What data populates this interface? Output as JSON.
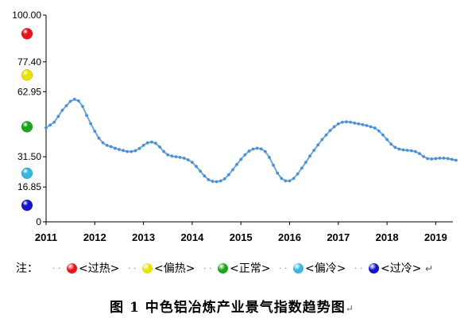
{
  "chart_data": {
    "type": "line",
    "title": "",
    "xlabel": "",
    "ylabel": "",
    "ylim": [
      0,
      100
    ],
    "y_ticks": [
      "100.00",
      "77.40",
      "62.95",
      "31.50",
      "16.85",
      "0"
    ],
    "y_tick_values": [
      100,
      77.4,
      62.95,
      31.5,
      16.85,
      0
    ],
    "x_ticks": [
      "2011",
      "2012",
      "2013",
      "2014",
      "2015",
      "2016",
      "2017",
      "2018",
      "2019"
    ],
    "x_start": "2011-01",
    "x_end": "2019-12",
    "series": [
      {
        "x_format": "YYYY-MM",
        "values": [
          {
            "x": "2011-01",
            "y": 45.5
          },
          {
            "x": "2011-02",
            "y": 46.8
          },
          {
            "x": "2011-03",
            "y": 48.2
          },
          {
            "x": "2011-04",
            "y": 51.0
          },
          {
            "x": "2011-05",
            "y": 54.0
          },
          {
            "x": "2011-06",
            "y": 56.2
          },
          {
            "x": "2011-07",
            "y": 58.3
          },
          {
            "x": "2011-08",
            "y": 59.3
          },
          {
            "x": "2011-09",
            "y": 58.5
          },
          {
            "x": "2011-10",
            "y": 55.8
          },
          {
            "x": "2011-11",
            "y": 51.5
          },
          {
            "x": "2011-12",
            "y": 47.5
          },
          {
            "x": "2012-01",
            "y": 43.8
          },
          {
            "x": "2012-02",
            "y": 40.5
          },
          {
            "x": "2012-03",
            "y": 38.2
          },
          {
            "x": "2012-04",
            "y": 37.0
          },
          {
            "x": "2012-05",
            "y": 36.4
          },
          {
            "x": "2012-06",
            "y": 35.6
          },
          {
            "x": "2012-07",
            "y": 35.0
          },
          {
            "x": "2012-08",
            "y": 34.5
          },
          {
            "x": "2012-09",
            "y": 34.0
          },
          {
            "x": "2012-10",
            "y": 34.0
          },
          {
            "x": "2012-11",
            "y": 34.4
          },
          {
            "x": "2012-12",
            "y": 35.5
          },
          {
            "x": "2013-01",
            "y": 37.0
          },
          {
            "x": "2013-02",
            "y": 38.2
          },
          {
            "x": "2013-03",
            "y": 38.6
          },
          {
            "x": "2013-04",
            "y": 38.0
          },
          {
            "x": "2013-05",
            "y": 36.2
          },
          {
            "x": "2013-06",
            "y": 34.0
          },
          {
            "x": "2013-07",
            "y": 32.4
          },
          {
            "x": "2013-08",
            "y": 31.8
          },
          {
            "x": "2013-09",
            "y": 31.5
          },
          {
            "x": "2013-10",
            "y": 31.2
          },
          {
            "x": "2013-11",
            "y": 30.8
          },
          {
            "x": "2013-12",
            "y": 30.0
          },
          {
            "x": "2014-01",
            "y": 28.8
          },
          {
            "x": "2014-02",
            "y": 26.8
          },
          {
            "x": "2014-03",
            "y": 24.5
          },
          {
            "x": "2014-04",
            "y": 22.2
          },
          {
            "x": "2014-05",
            "y": 20.4
          },
          {
            "x": "2014-06",
            "y": 19.6
          },
          {
            "x": "2014-07",
            "y": 19.4
          },
          {
            "x": "2014-08",
            "y": 19.8
          },
          {
            "x": "2014-09",
            "y": 20.8
          },
          {
            "x": "2014-10",
            "y": 22.8
          },
          {
            "x": "2014-11",
            "y": 25.2
          },
          {
            "x": "2014-12",
            "y": 27.8
          },
          {
            "x": "2015-01",
            "y": 30.2
          },
          {
            "x": "2015-02",
            "y": 32.4
          },
          {
            "x": "2015-03",
            "y": 34.2
          },
          {
            "x": "2015-04",
            "y": 35.2
          },
          {
            "x": "2015-05",
            "y": 35.6
          },
          {
            "x": "2015-06",
            "y": 35.3
          },
          {
            "x": "2015-07",
            "y": 34.0
          },
          {
            "x": "2015-08",
            "y": 31.2
          },
          {
            "x": "2015-09",
            "y": 27.4
          },
          {
            "x": "2015-10",
            "y": 23.6
          },
          {
            "x": "2015-11",
            "y": 21.0
          },
          {
            "x": "2015-12",
            "y": 19.8
          },
          {
            "x": "2016-01",
            "y": 19.8
          },
          {
            "x": "2016-02",
            "y": 21.0
          },
          {
            "x": "2016-03",
            "y": 23.2
          },
          {
            "x": "2016-04",
            "y": 26.0
          },
          {
            "x": "2016-05",
            "y": 28.8
          },
          {
            "x": "2016-06",
            "y": 31.8
          },
          {
            "x": "2016-07",
            "y": 34.6
          },
          {
            "x": "2016-08",
            "y": 37.2
          },
          {
            "x": "2016-09",
            "y": 39.8
          },
          {
            "x": "2016-10",
            "y": 42.0
          },
          {
            "x": "2016-11",
            "y": 44.2
          },
          {
            "x": "2016-12",
            "y": 46.0
          },
          {
            "x": "2017-01",
            "y": 47.4
          },
          {
            "x": "2017-02",
            "y": 48.2
          },
          {
            "x": "2017-03",
            "y": 48.4
          },
          {
            "x": "2017-04",
            "y": 48.2
          },
          {
            "x": "2017-05",
            "y": 47.8
          },
          {
            "x": "2017-06",
            "y": 47.4
          },
          {
            "x": "2017-07",
            "y": 47.0
          },
          {
            "x": "2017-08",
            "y": 46.6
          },
          {
            "x": "2017-09",
            "y": 46.0
          },
          {
            "x": "2017-10",
            "y": 45.4
          },
          {
            "x": "2017-11",
            "y": 44.0
          },
          {
            "x": "2017-12",
            "y": 42.0
          },
          {
            "x": "2018-01",
            "y": 39.8
          },
          {
            "x": "2018-02",
            "y": 37.6
          },
          {
            "x": "2018-03",
            "y": 36.0
          },
          {
            "x": "2018-04",
            "y": 35.2
          },
          {
            "x": "2018-05",
            "y": 34.8
          },
          {
            "x": "2018-06",
            "y": 34.6
          },
          {
            "x": "2018-07",
            "y": 34.4
          },
          {
            "x": "2018-08",
            "y": 34.0
          },
          {
            "x": "2018-09",
            "y": 33.0
          },
          {
            "x": "2018-10",
            "y": 31.6
          },
          {
            "x": "2018-11",
            "y": 30.6
          },
          {
            "x": "2018-12",
            "y": 30.4
          },
          {
            "x": "2019-01",
            "y": 30.6
          },
          {
            "x": "2019-02",
            "y": 30.8
          },
          {
            "x": "2019-03",
            "y": 30.8
          },
          {
            "x": "2019-04",
            "y": 30.6
          },
          {
            "x": "2019-05",
            "y": 30.2
          },
          {
            "x": "2019-06",
            "y": 29.8
          }
        ]
      }
    ],
    "line_color": "#6fa8dc",
    "point_color": "#4a90d9",
    "grid": false,
    "zone_markers": [
      {
        "zone": "overheated",
        "y": 91,
        "color": "#e8141b"
      },
      {
        "zone": "slightly-hot",
        "y": 71,
        "color": "#e8e400"
      },
      {
        "zone": "normal",
        "y": 46,
        "color": "#1aa51a"
      },
      {
        "zone": "slightly-cold",
        "y": 23.5,
        "color": "#36b6e0"
      },
      {
        "zone": "overcooled",
        "y": 8,
        "color": "#1414c8"
      }
    ]
  },
  "legend": {
    "prefix": "注：",
    "items": [
      {
        "label": "<过热>",
        "color": "#e8141b"
      },
      {
        "label": "<偏热>",
        "color": "#e8e400"
      },
      {
        "label": "<正常>",
        "color": "#1aa51a"
      },
      {
        "label": "<偏冷>",
        "color": "#36b6e0"
      },
      {
        "label": "<过冷>",
        "color": "#1414c8"
      }
    ],
    "separator": "·  ·",
    "end_mark": "↵"
  },
  "caption": {
    "text": "图 1 中色铝冶炼产业景气指数趋势图",
    "end_mark": "↵"
  }
}
